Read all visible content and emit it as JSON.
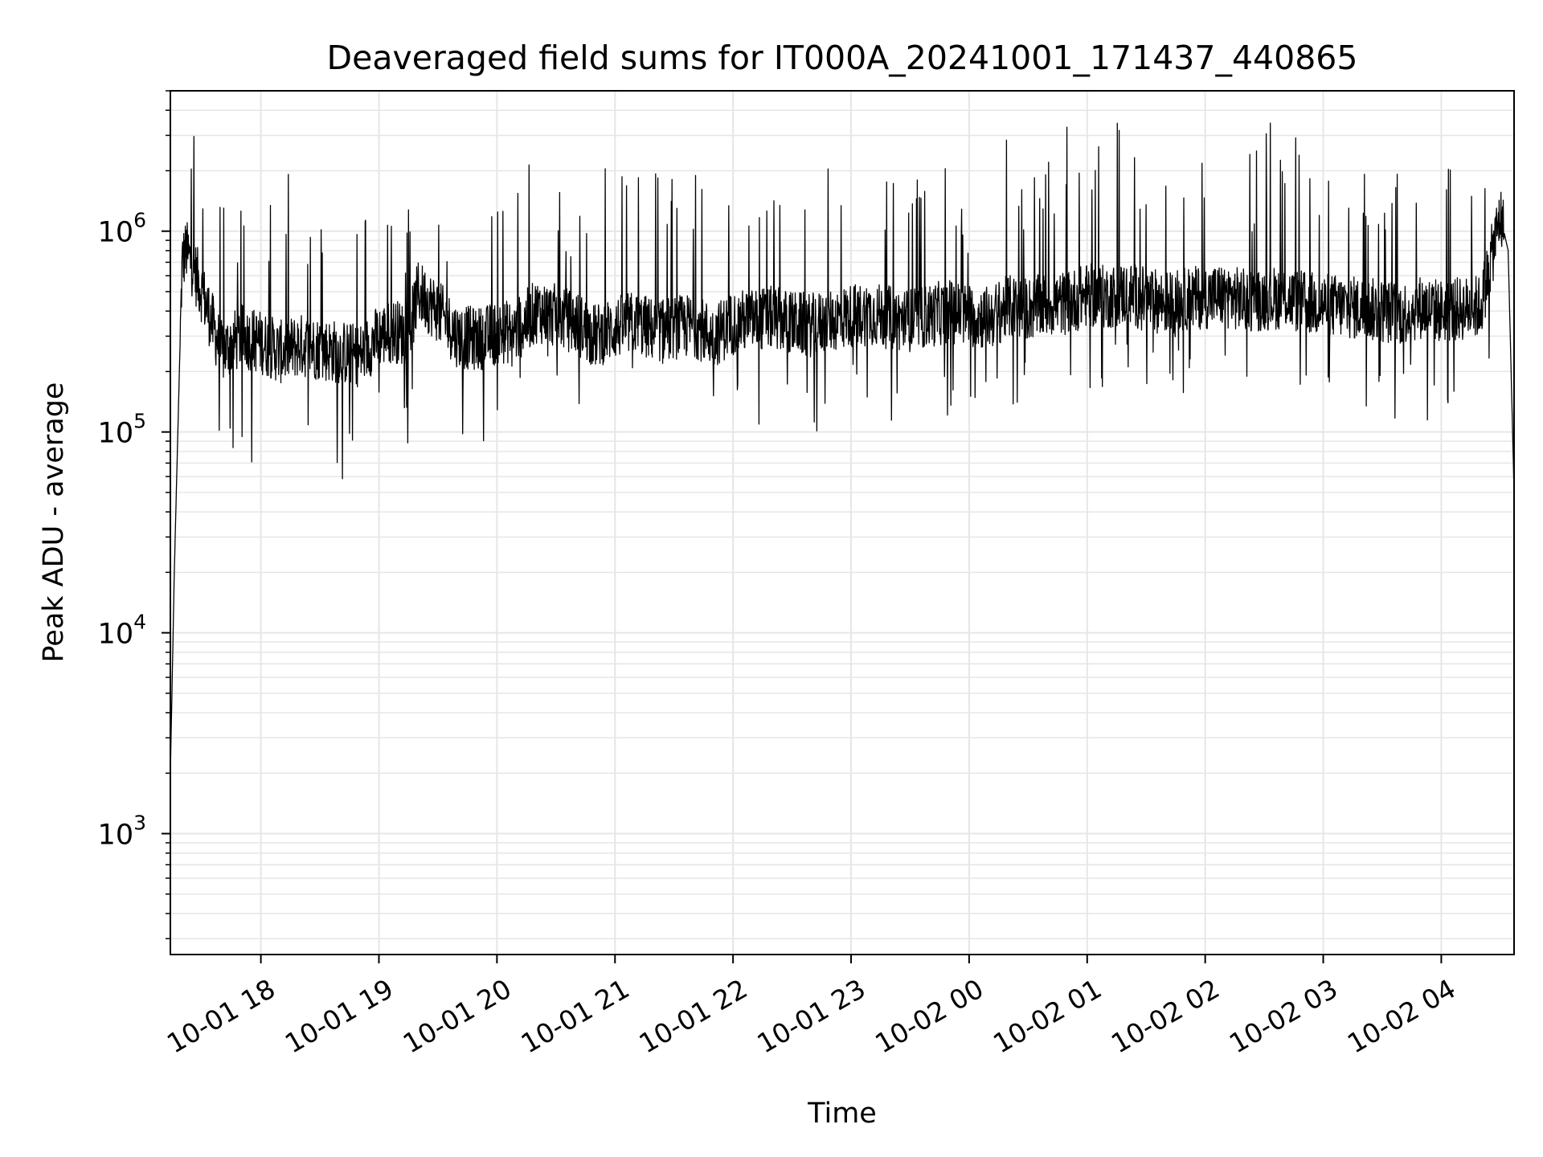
{
  "chart_data": {
    "type": "line",
    "title": "Deaveraged field sums for IT000A_20241001_171437_440865",
    "xlabel": "Time",
    "ylabel": "Peak ADU - average",
    "yscale": "log",
    "ylim": [
      250,
      5000000
    ],
    "xlim": [
      "2024-10-01 17:14",
      "2024-10-02 04:37"
    ],
    "grid": true,
    "grid_minor": true,
    "line_color": "#000000",
    "grid_color": "#e6e6e6",
    "y_ticks": [
      {
        "value": 1000,
        "base": "10",
        "exp": "3"
      },
      {
        "value": 10000,
        "base": "10",
        "exp": "4"
      },
      {
        "value": 100000,
        "base": "10",
        "exp": "5"
      },
      {
        "value": 1000000,
        "base": "10",
        "exp": "6"
      }
    ],
    "x_ticks": [
      {
        "time": "2024-10-01 18:00",
        "label": "10-01 18"
      },
      {
        "time": "2024-10-01 19:00",
        "label": "10-01 19"
      },
      {
        "time": "2024-10-01 20:00",
        "label": "10-01 20"
      },
      {
        "time": "2024-10-01 21:00",
        "label": "10-01 21"
      },
      {
        "time": "2024-10-01 22:00",
        "label": "10-01 22"
      },
      {
        "time": "2024-10-01 23:00",
        "label": "10-01 23"
      },
      {
        "time": "2024-10-02 00:00",
        "label": "10-02 00"
      },
      {
        "time": "2024-10-02 01:00",
        "label": "10-02 01"
      },
      {
        "time": "2024-10-02 02:00",
        "label": "10-02 02"
      },
      {
        "time": "2024-10-02 03:00",
        "label": "10-02 03"
      },
      {
        "time": "2024-10-02 04:00",
        "label": "10-02 04"
      }
    ],
    "series": [
      {
        "x": [
          "2024-10-01 17:14",
          "2024-10-01 17:16",
          "2024-10-01 17:18",
          "2024-10-01 17:20",
          "2024-10-01 17:22",
          "2024-10-01 17:26",
          "2024-10-01 17:30",
          "2024-10-01 17:40",
          "2024-10-01 17:50",
          "2024-10-01 18:00",
          "2024-10-01 18:10",
          "2024-10-01 18:20",
          "2024-10-01 18:30",
          "2024-10-01 18:40",
          "2024-10-01 18:50",
          "2024-10-01 19:00",
          "2024-10-01 19:08",
          "2024-10-01 19:15",
          "2024-10-01 19:20",
          "2024-10-01 19:30",
          "2024-10-01 19:40",
          "2024-10-01 19:50",
          "2024-10-01 20:00",
          "2024-10-01 20:10",
          "2024-10-01 20:20",
          "2024-10-01 20:30",
          "2024-10-01 20:40",
          "2024-10-01 20:50",
          "2024-10-01 21:00",
          "2024-10-01 21:10",
          "2024-10-01 21:20",
          "2024-10-01 21:30",
          "2024-10-01 21:40",
          "2024-10-01 21:50",
          "2024-10-01 22:00",
          "2024-10-01 22:10",
          "2024-10-01 22:20",
          "2024-10-01 22:30",
          "2024-10-01 22:40",
          "2024-10-01 22:50",
          "2024-10-01 23:00",
          "2024-10-01 23:10",
          "2024-10-01 23:20",
          "2024-10-01 23:30",
          "2024-10-01 23:40",
          "2024-10-01 23:50",
          "2024-10-02 00:00",
          "2024-10-02 00:10",
          "2024-10-02 00:20",
          "2024-10-02 00:30",
          "2024-10-02 00:40",
          "2024-10-02 00:50",
          "2024-10-02 01:00",
          "2024-10-02 01:10",
          "2024-10-02 01:20",
          "2024-10-02 01:30",
          "2024-10-02 01:40",
          "2024-10-02 01:50",
          "2024-10-02 02:00",
          "2024-10-02 02:10",
          "2024-10-02 02:20",
          "2024-10-02 02:30",
          "2024-10-02 02:40",
          "2024-10-02 02:50",
          "2024-10-02 03:00",
          "2024-10-02 03:10",
          "2024-10-02 03:20",
          "2024-10-02 03:30",
          "2024-10-02 03:40",
          "2024-10-02 03:50",
          "2024-10-02 04:00",
          "2024-10-02 04:10",
          "2024-10-02 04:20",
          "2024-10-02 04:25",
          "2024-10-02 04:30",
          "2024-10-02 04:34",
          "2024-10-02 04:37"
        ],
        "y": [
          2000,
          20000,
          120000,
          700000,
          800000,
          650000,
          500000,
          250000,
          300000,
          280000,
          250000,
          270000,
          260000,
          250000,
          240000,
          300000,
          320000,
          300000,
          500000,
          400000,
          300000,
          290000,
          310000,
          320000,
          400000,
          380000,
          350000,
          300000,
          330000,
          350000,
          320000,
          330000,
          340000,
          300000,
          350000,
          360000,
          370000,
          350000,
          340000,
          360000,
          380000,
          390000,
          370000,
          360000,
          380000,
          400000,
          380000,
          370000,
          420000,
          410000,
          430000,
          440000,
          480000,
          470000,
          490000,
          460000,
          440000,
          460000,
          470000,
          480000,
          450000,
          460000,
          470000,
          440000,
          430000,
          420000,
          410000,
          400000,
          390000,
          420000,
          400000,
          410000,
          420000,
          700000,
          1200000,
          800000,
          50000
        ]
      }
    ]
  }
}
